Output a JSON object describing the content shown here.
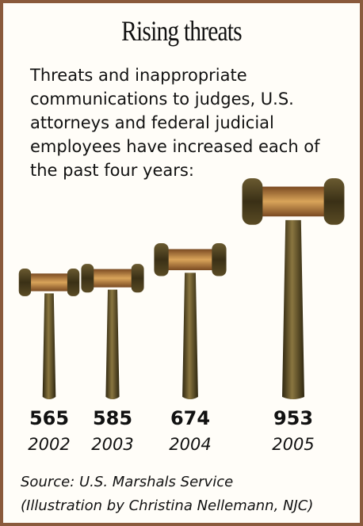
{
  "chart_data": {
    "type": "pictograph",
    "title": "Rising threats",
    "subtitle": "Threats and inappropriate communications to judges, U.S. attorneys and federal judicial employees have increased each of the past four years:",
    "categories": [
      "2002",
      "2003",
      "2004",
      "2005"
    ],
    "values": [
      565,
      585,
      674,
      953
    ],
    "source": "Source: U.S. Marshals Service",
    "credit": "(Illustration by Christina Nellemann, NJC)"
  }
}
